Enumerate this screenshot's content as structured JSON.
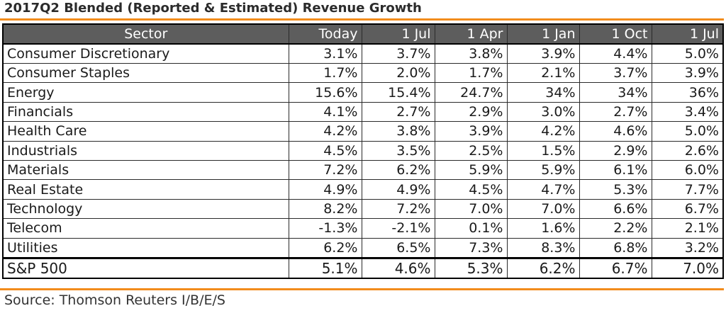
{
  "title": "2017Q2 Blended (Reported & Estimated) Revenue Growth",
  "header": [
    "Sector",
    "Today",
    "1 Jul",
    "1 Apr",
    "1 Jan",
    "1 Oct",
    "1 Jul"
  ],
  "rows": [
    {
      "sector": "Consumer Discretionary",
      "values": [
        "3.1%",
        "3.7%",
        "3.8%",
        "3.9%",
        "4.4%",
        "5.0%"
      ]
    },
    {
      "sector": "Consumer Staples",
      "values": [
        "1.7%",
        "2.0%",
        "1.7%",
        "2.1%",
        "3.7%",
        "3.9%"
      ]
    },
    {
      "sector": "Energy",
      "values": [
        "15.6%",
        "15.4%",
        "24.7%",
        "34%",
        "34%",
        "36%"
      ]
    },
    {
      "sector": "Financials",
      "values": [
        "4.1%",
        "2.7%",
        "2.9%",
        "3.0%",
        "2.7%",
        "3.4%"
      ]
    },
    {
      "sector": "Health Care",
      "values": [
        "4.2%",
        "3.8%",
        "3.9%",
        "4.2%",
        "4.6%",
        "5.0%"
      ]
    },
    {
      "sector": "Industrials",
      "values": [
        "4.5%",
        "3.5%",
        "2.5%",
        "1.5%",
        "2.9%",
        "2.6%"
      ]
    },
    {
      "sector": "Materials",
      "values": [
        "7.2%",
        "6.2%",
        "5.9%",
        "5.9%",
        "6.1%",
        "6.0%"
      ]
    },
    {
      "sector": "Real Estate",
      "values": [
        "4.9%",
        "4.9%",
        "4.5%",
        "4.7%",
        "5.3%",
        "7.7%"
      ]
    },
    {
      "sector": "Technology",
      "values": [
        "8.2%",
        "7.2%",
        "7.0%",
        "7.0%",
        "6.6%",
        "6.7%"
      ]
    },
    {
      "sector": "Telecom",
      "values": [
        "-1.3%",
        "-2.1%",
        "0.1%",
        "1.6%",
        "2.2%",
        "2.1%"
      ]
    },
    {
      "sector": "Utilities",
      "values": [
        "6.2%",
        "6.5%",
        "7.3%",
        "8.3%",
        "6.8%",
        "3.2%"
      ]
    }
  ],
  "total": {
    "sector": "S&P 500",
    "values": [
      "5.1%",
      "4.6%",
      "5.3%",
      "6.2%",
      "6.7%",
      "7.0%"
    ]
  },
  "source": "Source: Thomson Reuters I/B/E/S",
  "colors": {
    "accent_rule": "#f28c1c",
    "header_bg": "#5d5d5d",
    "header_text": "#ffffff"
  }
}
